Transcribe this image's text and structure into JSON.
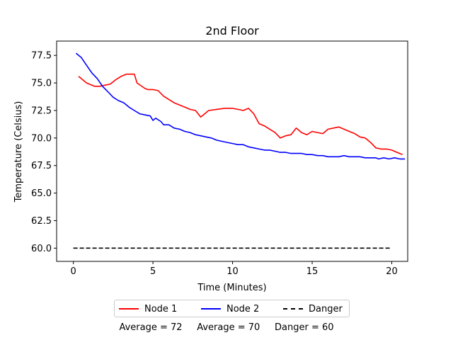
{
  "chart_data": {
    "type": "line",
    "title": "2nd Floor",
    "xlabel": "Time (Minutes)",
    "ylabel": "Temperature (Celsius)",
    "xlim": [
      -1.05,
      21.0
    ],
    "ylim": [
      58.8,
      78.8
    ],
    "xticks": [
      0,
      5,
      10,
      15,
      20
    ],
    "xtick_labels": [
      "0",
      "5",
      "10",
      "15",
      "20"
    ],
    "yticks": [
      60.0,
      62.5,
      65.0,
      67.5,
      70.0,
      72.5,
      75.0,
      77.5
    ],
    "ytick_labels": [
      "60.0",
      "62.5",
      "65.0",
      "67.5",
      "70.0",
      "72.5",
      "75.0",
      "77.5"
    ],
    "grid": false,
    "legend_position": "bottom-center",
    "series": [
      {
        "name": "Node 1",
        "color": "#ff0000",
        "style": "solid",
        "x": [
          0.33,
          0.83,
          1.33,
          1.67,
          2.0,
          2.33,
          2.67,
          3.0,
          3.33,
          3.67,
          3.83,
          4.0,
          4.5,
          4.67,
          5.0,
          5.33,
          5.67,
          6.0,
          6.33,
          6.67,
          7.0,
          7.33,
          7.67,
          8.0,
          8.5,
          9.0,
          9.5,
          10.0,
          10.33,
          10.67,
          11.0,
          11.33,
          11.67,
          12.0,
          12.33,
          12.67,
          13.0,
          13.33,
          13.67,
          14.0,
          14.33,
          14.67,
          15.0,
          15.33,
          15.67,
          16.0,
          16.33,
          16.67,
          17.0,
          17.33,
          17.67,
          18.0,
          18.33,
          18.67,
          19.0,
          19.33,
          19.67,
          20.0,
          20.33,
          20.67
        ],
        "y": [
          75.6,
          75.0,
          74.7,
          74.7,
          74.8,
          74.9,
          75.3,
          75.6,
          75.8,
          75.8,
          75.8,
          75.0,
          74.5,
          74.4,
          74.4,
          74.3,
          73.8,
          73.5,
          73.2,
          73.0,
          72.8,
          72.6,
          72.5,
          71.9,
          72.5,
          72.6,
          72.7,
          72.7,
          72.6,
          72.5,
          72.7,
          72.2,
          71.3,
          71.1,
          70.8,
          70.5,
          70.0,
          70.2,
          70.3,
          70.9,
          70.5,
          70.3,
          70.6,
          70.5,
          70.4,
          70.8,
          70.9,
          71.0,
          70.8,
          70.6,
          70.4,
          70.1,
          70.0,
          69.6,
          69.1,
          69.0,
          69.0,
          68.9,
          68.7,
          68.5
        ],
        "average_label": "Average = 72"
      },
      {
        "name": "Node 2",
        "color": "#0000ff",
        "style": "solid",
        "x": [
          0.17,
          0.5,
          0.83,
          1.17,
          1.5,
          1.83,
          2.17,
          2.5,
          2.83,
          3.17,
          3.5,
          3.83,
          4.17,
          4.5,
          4.83,
          5.0,
          5.17,
          5.5,
          5.67,
          6.0,
          6.33,
          6.67,
          7.0,
          7.33,
          7.67,
          8.0,
          8.33,
          8.67,
          9.0,
          9.33,
          9.67,
          10.0,
          10.33,
          10.67,
          11.0,
          11.33,
          11.67,
          12.0,
          12.33,
          12.67,
          13.0,
          13.33,
          13.67,
          14.0,
          14.33,
          14.67,
          15.0,
          15.33,
          15.67,
          16.0,
          16.33,
          16.67,
          17.0,
          17.33,
          17.67,
          18.0,
          18.33,
          18.67,
          19.0,
          19.17,
          19.5,
          19.83,
          20.17,
          20.5,
          20.83
        ],
        "y": [
          77.7,
          77.3,
          76.6,
          75.9,
          75.4,
          74.7,
          74.2,
          73.7,
          73.4,
          73.2,
          72.8,
          72.5,
          72.2,
          72.1,
          72.0,
          71.6,
          71.8,
          71.5,
          71.2,
          71.2,
          70.9,
          70.8,
          70.6,
          70.5,
          70.3,
          70.2,
          70.1,
          70.0,
          69.8,
          69.7,
          69.6,
          69.5,
          69.4,
          69.4,
          69.2,
          69.1,
          69.0,
          68.9,
          68.9,
          68.8,
          68.7,
          68.7,
          68.6,
          68.6,
          68.6,
          68.5,
          68.5,
          68.4,
          68.4,
          68.3,
          68.3,
          68.3,
          68.4,
          68.3,
          68.3,
          68.3,
          68.2,
          68.2,
          68.2,
          68.1,
          68.2,
          68.1,
          68.2,
          68.1,
          68.1
        ],
        "average_label": "Average = 70"
      },
      {
        "name": "Danger",
        "color": "#000000",
        "style": "dashed",
        "x": [
          0.0,
          20.0
        ],
        "y": [
          60.0,
          60.0
        ],
        "average_label": "Danger = 60"
      }
    ]
  }
}
